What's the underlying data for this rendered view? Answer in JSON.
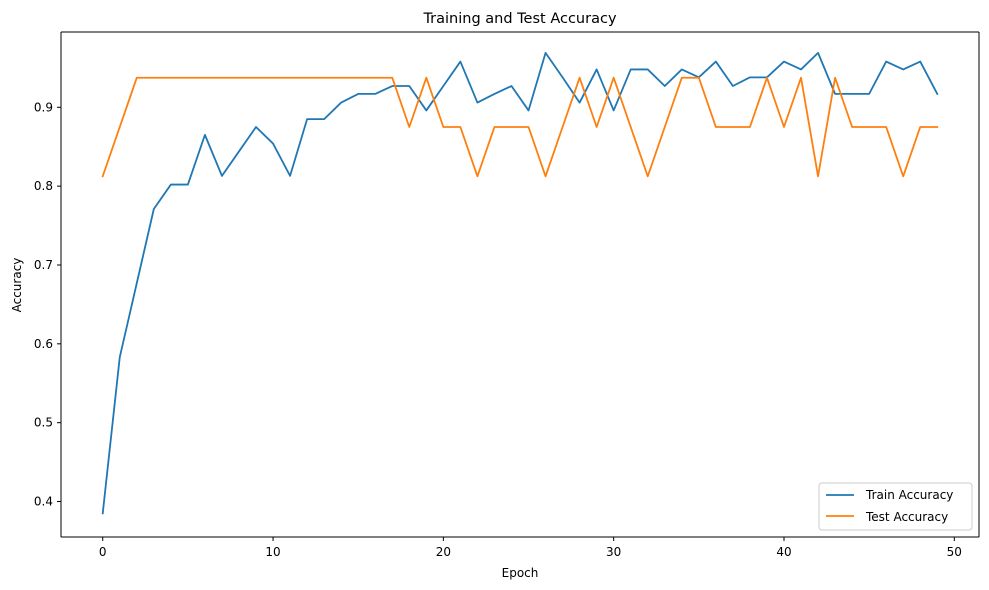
{
  "chart_data": {
    "type": "line",
    "title": "Training and Test Accuracy",
    "xlabel": "Epoch",
    "ylabel": "Accuracy",
    "xlim": [
      -2.45,
      51.45
    ],
    "ylim": [
      0.355,
      0.9955
    ],
    "xticks": [
      0,
      10,
      20,
      30,
      40,
      50
    ],
    "yticks": [
      0.4,
      0.5,
      0.6,
      0.7,
      0.8,
      0.9
    ],
    "grid": false,
    "legend_position": "lower-right",
    "x": [
      0,
      1,
      2,
      3,
      4,
      5,
      6,
      7,
      8,
      9,
      10,
      11,
      12,
      13,
      14,
      15,
      16,
      17,
      18,
      19,
      20,
      21,
      22,
      23,
      24,
      25,
      26,
      27,
      28,
      29,
      30,
      31,
      32,
      33,
      34,
      35,
      36,
      37,
      38,
      39,
      40,
      41,
      42,
      43,
      44,
      45,
      46,
      47,
      48,
      49
    ],
    "series": [
      {
        "name": "Train Accuracy",
        "color": "#1f77b4",
        "values": [
          0.385,
          0.583,
          0.677,
          0.771,
          0.802,
          0.802,
          0.865,
          0.813,
          0.844,
          0.875,
          0.854,
          0.813,
          0.885,
          0.885,
          0.906,
          0.917,
          0.917,
          0.927,
          0.927,
          0.896,
          0.927,
          0.958,
          0.906,
          0.917,
          0.927,
          0.896,
          0.969,
          0.938,
          0.906,
          0.948,
          0.896,
          0.948,
          0.948,
          0.927,
          0.948,
          0.938,
          0.958,
          0.927,
          0.938,
          0.938,
          0.958,
          0.948,
          0.969,
          0.917,
          0.917,
          0.917,
          0.958,
          0.948,
          0.958,
          0.917
        ]
      },
      {
        "name": "Test Accuracy",
        "color": "#ff7f0e",
        "values": [
          0.8125,
          0.875,
          0.9375,
          0.9375,
          0.9375,
          0.9375,
          0.9375,
          0.9375,
          0.9375,
          0.9375,
          0.9375,
          0.9375,
          0.9375,
          0.9375,
          0.9375,
          0.9375,
          0.9375,
          0.9375,
          0.875,
          0.9375,
          0.875,
          0.875,
          0.8125,
          0.875,
          0.875,
          0.875,
          0.8125,
          0.875,
          0.9375,
          0.875,
          0.9375,
          0.875,
          0.8125,
          0.875,
          0.9375,
          0.9375,
          0.875,
          0.875,
          0.875,
          0.9375,
          0.875,
          0.9375,
          0.8125,
          0.9375,
          0.875,
          0.875,
          0.875,
          0.8125,
          0.875,
          0.875
        ]
      }
    ]
  }
}
